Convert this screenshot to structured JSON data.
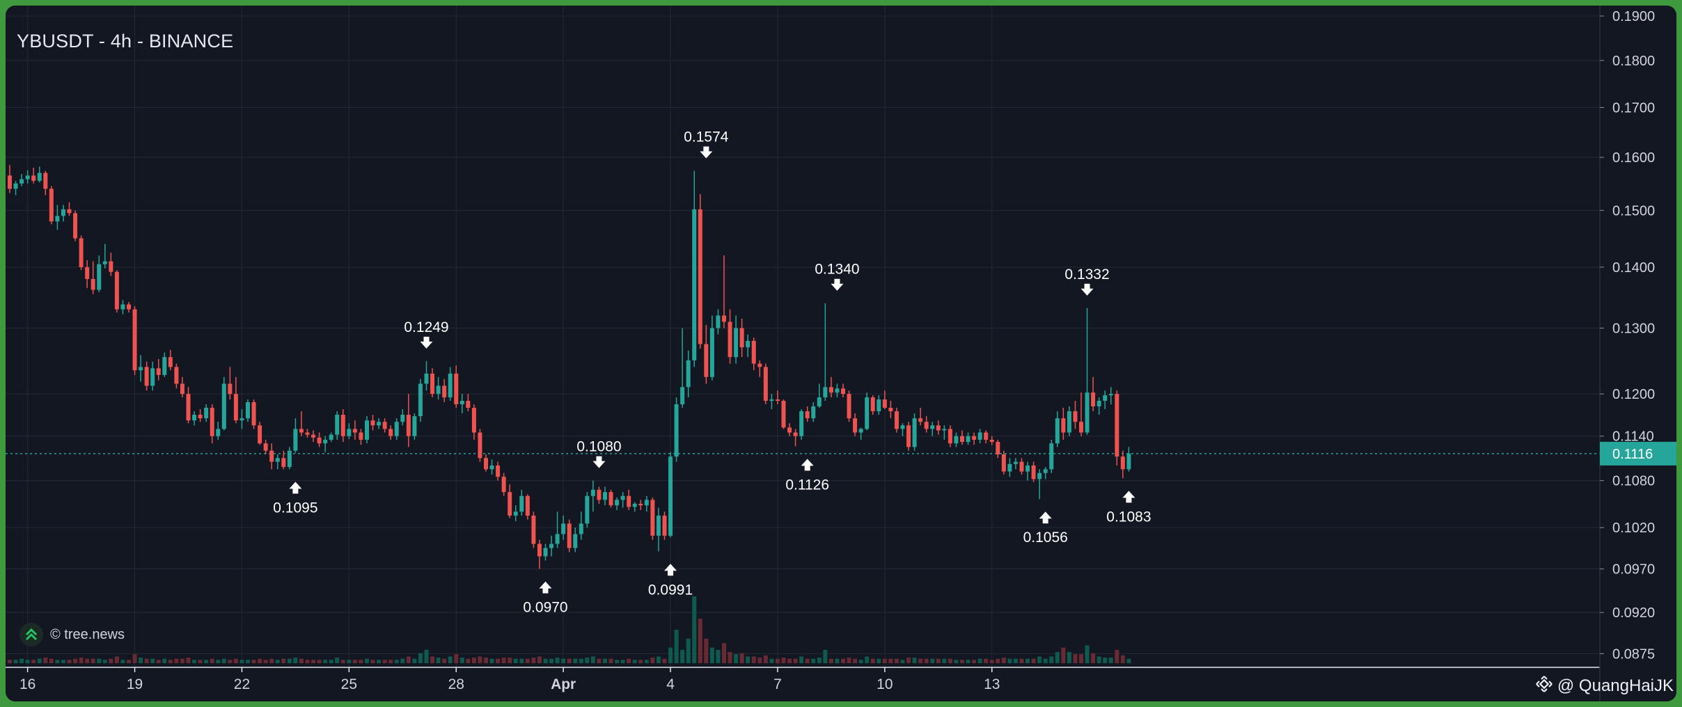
{
  "title": "YBUSDT - 4h - BINANCE",
  "source_badge": "© tree.news",
  "watermark": "@ QuangHaiJK",
  "colors": {
    "background": "#131722",
    "grid": "#232733",
    "up": "#26a69a",
    "down": "#ef5350",
    "up_volume": "#0f5a4f",
    "down_volume": "#6a2a34",
    "current_price_line": "#26a69a",
    "label_text": "#ffffff",
    "axis_text": "#d1d4dc",
    "frame": "#3f9a3f"
  },
  "icons": {
    "high_marker": "arrow-down-icon",
    "low_marker": "arrow-up-icon",
    "badge": "tree-news-logo-icon",
    "watermark": "binance-logo-icon"
  },
  "chart_data": {
    "type": "candlestick",
    "symbol": "YBUSDT",
    "interval": "4h",
    "exchange": "BINANCE",
    "y_scale": "log",
    "ylim": [
      0.0865,
      0.19
    ],
    "grid": true,
    "y_ticks": [
      "0.1900",
      "0.1800",
      "0.1700",
      "0.1600",
      "0.1500",
      "0.1400",
      "0.1300",
      "0.1200",
      "0.1140",
      "0.1080",
      "0.1020",
      "0.0970",
      "0.0920",
      "0.0875"
    ],
    "x_ticks": [
      {
        "label": "16",
        "bold": false
      },
      {
        "label": "19",
        "bold": false
      },
      {
        "label": "22",
        "bold": false
      },
      {
        "label": "25",
        "bold": false
      },
      {
        "label": "28",
        "bold": false
      },
      {
        "label": "Apr",
        "bold": true
      },
      {
        "label": "4",
        "bold": false
      },
      {
        "label": "7",
        "bold": false
      },
      {
        "label": "10",
        "bold": false
      },
      {
        "label": "13",
        "bold": false
      }
    ],
    "current_price": "0.1116",
    "annotations": [
      {
        "label": "0.1574",
        "type": "high",
        "price": 0.1574,
        "candle_index": 117
      },
      {
        "label": "0.1340",
        "type": "high",
        "price": 0.134,
        "candle_index": 139
      },
      {
        "label": "0.1332",
        "type": "high",
        "price": 0.1332,
        "candle_index": 181
      },
      {
        "label": "0.1249",
        "type": "high",
        "price": 0.1249,
        "candle_index": 70
      },
      {
        "label": "0.1080",
        "type": "high",
        "price": 0.108,
        "candle_index": 99
      },
      {
        "label": "0.1095",
        "type": "low",
        "price": 0.1095,
        "candle_index": 48
      },
      {
        "label": "0.0970",
        "type": "low",
        "price": 0.097,
        "candle_index": 90
      },
      {
        "label": "0.0991",
        "type": "low",
        "price": 0.0991,
        "candle_index": 111
      },
      {
        "label": "0.1126",
        "type": "low",
        "price": 0.1126,
        "candle_index": 134
      },
      {
        "label": "0.1056",
        "type": "low",
        "price": 0.1056,
        "candle_index": 174
      },
      {
        "label": "0.1083",
        "type": "low",
        "price": 0.1083,
        "candle_index": 188
      }
    ],
    "candles": [
      [
        0.1565,
        0.1585,
        0.1532,
        0.154
      ],
      [
        0.154,
        0.1555,
        0.1528,
        0.155
      ],
      [
        0.155,
        0.1568,
        0.1545,
        0.1558
      ],
      [
        0.1558,
        0.1575,
        0.155,
        0.1565
      ],
      [
        0.1565,
        0.158,
        0.155,
        0.1555
      ],
      [
        0.1555,
        0.1582,
        0.1552,
        0.157
      ],
      [
        0.157,
        0.1574,
        0.1528,
        0.154
      ],
      [
        0.154,
        0.1545,
        0.1475,
        0.148
      ],
      [
        0.148,
        0.151,
        0.1465,
        0.149
      ],
      [
        0.149,
        0.151,
        0.148,
        0.1502
      ],
      [
        0.1502,
        0.1515,
        0.149,
        0.1495
      ],
      [
        0.1495,
        0.15,
        0.1445,
        0.145
      ],
      [
        0.145,
        0.1455,
        0.1395,
        0.14
      ],
      [
        0.14,
        0.1412,
        0.1365,
        0.138
      ],
      [
        0.138,
        0.141,
        0.1355,
        0.1362
      ],
      [
        0.1362,
        0.142,
        0.1358,
        0.1405
      ],
      [
        0.1405,
        0.144,
        0.1398,
        0.141
      ],
      [
        0.141,
        0.1425,
        0.1385,
        0.1392
      ],
      [
        0.1392,
        0.1395,
        0.1325,
        0.133
      ],
      [
        0.133,
        0.1345,
        0.1322,
        0.1338
      ],
      [
        0.1338,
        0.1342,
        0.1325,
        0.133
      ],
      [
        0.133,
        0.1335,
        0.1228,
        0.1235
      ],
      [
        0.1235,
        0.1258,
        0.1218,
        0.124
      ],
      [
        0.124,
        0.1248,
        0.1205,
        0.1212
      ],
      [
        0.1212,
        0.1248,
        0.1205,
        0.1238
      ],
      [
        0.1238,
        0.1252,
        0.122,
        0.1228
      ],
      [
        0.1228,
        0.1262,
        0.1225,
        0.1255
      ],
      [
        0.1255,
        0.1266,
        0.1235,
        0.124
      ],
      [
        0.124,
        0.1245,
        0.1208,
        0.1215
      ],
      [
        0.1215,
        0.1225,
        0.1195,
        0.12
      ],
      [
        0.12,
        0.121,
        0.1158,
        0.1162
      ],
      [
        0.1162,
        0.1175,
        0.1155,
        0.117
      ],
      [
        0.117,
        0.1178,
        0.116,
        0.1165
      ],
      [
        0.1165,
        0.1185,
        0.116,
        0.118
      ],
      [
        0.118,
        0.1185,
        0.113,
        0.114
      ],
      [
        0.114,
        0.116,
        0.1135,
        0.115
      ],
      [
        0.115,
        0.1225,
        0.1148,
        0.1215
      ],
      [
        0.1215,
        0.124,
        0.1192,
        0.12
      ],
      [
        0.12,
        0.1225,
        0.1158,
        0.1162
      ],
      [
        0.1162,
        0.1178,
        0.115,
        0.1165
      ],
      [
        0.1165,
        0.1192,
        0.116,
        0.1188
      ],
      [
        0.1188,
        0.1192,
        0.115,
        0.1155
      ],
      [
        0.1155,
        0.116,
        0.1128,
        0.113
      ],
      [
        0.113,
        0.1135,
        0.1115,
        0.112
      ],
      [
        0.112,
        0.113,
        0.1095,
        0.1105
      ],
      [
        0.1105,
        0.1115,
        0.1095,
        0.111
      ],
      [
        0.111,
        0.112,
        0.1095,
        0.1098
      ],
      [
        0.1098,
        0.1125,
        0.1095,
        0.112
      ],
      [
        0.112,
        0.1165,
        0.1117,
        0.115
      ],
      [
        0.115,
        0.1175,
        0.114,
        0.1145
      ],
      [
        0.1145,
        0.115,
        0.1138,
        0.1142
      ],
      [
        0.1142,
        0.1148,
        0.1132,
        0.1138
      ],
      [
        0.1138,
        0.1145,
        0.1125,
        0.113
      ],
      [
        0.113,
        0.114,
        0.1118,
        0.1135
      ],
      [
        0.1135,
        0.1145,
        0.1132,
        0.1142
      ],
      [
        0.1142,
        0.1175,
        0.1135,
        0.117
      ],
      [
        0.117,
        0.1178,
        0.1132,
        0.114
      ],
      [
        0.114,
        0.1158,
        0.1136,
        0.115
      ],
      [
        0.115,
        0.1162,
        0.1135,
        0.1145
      ],
      [
        0.1145,
        0.115,
        0.1128,
        0.1135
      ],
      [
        0.1135,
        0.1168,
        0.113,
        0.1162
      ],
      [
        0.1162,
        0.117,
        0.1148,
        0.1155
      ],
      [
        0.1155,
        0.1165,
        0.115,
        0.116
      ],
      [
        0.116,
        0.1165,
        0.1145,
        0.115
      ],
      [
        0.115,
        0.1155,
        0.1135,
        0.114
      ],
      [
        0.114,
        0.1165,
        0.1135,
        0.116
      ],
      [
        0.116,
        0.1178,
        0.1155,
        0.117
      ],
      [
        0.117,
        0.12,
        0.1125,
        0.114
      ],
      [
        0.114,
        0.1172,
        0.1135,
        0.1168
      ],
      [
        0.1168,
        0.1222,
        0.116,
        0.1215
      ],
      [
        0.1215,
        0.1249,
        0.1205,
        0.123
      ],
      [
        0.123,
        0.1238,
        0.1195,
        0.12
      ],
      [
        0.12,
        0.1225,
        0.1192,
        0.1212
      ],
      [
        0.1212,
        0.1222,
        0.1188,
        0.1195
      ],
      [
        0.1195,
        0.124,
        0.119,
        0.123
      ],
      [
        0.123,
        0.1242,
        0.118,
        0.1185
      ],
      [
        0.1185,
        0.12,
        0.1172,
        0.119
      ],
      [
        0.119,
        0.12,
        0.1175,
        0.118
      ],
      [
        0.118,
        0.1185,
        0.1135,
        0.1145
      ],
      [
        0.1145,
        0.115,
        0.1105,
        0.111
      ],
      [
        0.111,
        0.1115,
        0.1092,
        0.1095
      ],
      [
        0.1095,
        0.1108,
        0.1088,
        0.11
      ],
      [
        0.11,
        0.1105,
        0.108,
        0.1085
      ],
      [
        0.1085,
        0.109,
        0.106,
        0.1065
      ],
      [
        0.1065,
        0.1075,
        0.1032,
        0.1035
      ],
      [
        0.1035,
        0.1048,
        0.1028,
        0.104
      ],
      [
        0.104,
        0.1068,
        0.1035,
        0.106
      ],
      [
        0.106,
        0.1062,
        0.103,
        0.1035
      ],
      [
        0.1035,
        0.104,
        0.0995,
        0.1
      ],
      [
        0.1,
        0.1005,
        0.097,
        0.0985
      ],
      [
        0.0985,
        0.1,
        0.098,
        0.0995
      ],
      [
        0.0995,
        0.101,
        0.0985,
        0.1
      ],
      [
        0.1,
        0.104,
        0.0995,
        0.1012
      ],
      [
        0.1012,
        0.1035,
        0.1005,
        0.1025
      ],
      [
        0.1025,
        0.103,
        0.099,
        0.0995
      ],
      [
        0.0995,
        0.102,
        0.099,
        0.1012
      ],
      [
        0.1012,
        0.104,
        0.1005,
        0.1025
      ],
      [
        0.1025,
        0.1065,
        0.102,
        0.106
      ],
      [
        0.106,
        0.108,
        0.104,
        0.1068
      ],
      [
        0.1068,
        0.1072,
        0.105,
        0.1055
      ],
      [
        0.1055,
        0.1072,
        0.1048,
        0.1065
      ],
      [
        0.1065,
        0.1068,
        0.1045,
        0.1048
      ],
      [
        0.1048,
        0.1058,
        0.1042,
        0.1055
      ],
      [
        0.1055,
        0.1065,
        0.1045,
        0.106
      ],
      [
        0.106,
        0.1068,
        0.1042,
        0.1046
      ],
      [
        0.1046,
        0.1052,
        0.104,
        0.105
      ],
      [
        0.105,
        0.1055,
        0.1042,
        0.1048
      ],
      [
        0.1048,
        0.106,
        0.104,
        0.1055
      ],
      [
        0.1055,
        0.1058,
        0.1005,
        0.101
      ],
      [
        0.101,
        0.1045,
        0.0991,
        0.1035
      ],
      [
        0.1035,
        0.104,
        0.1005,
        0.101
      ],
      [
        0.101,
        0.1118,
        0.1008,
        0.1112
      ],
      [
        0.1112,
        0.1195,
        0.1105,
        0.1185
      ],
      [
        0.1185,
        0.13,
        0.118,
        0.121
      ],
      [
        0.121,
        0.1265,
        0.1195,
        0.125
      ],
      [
        0.125,
        0.1574,
        0.124,
        0.1502
      ],
      [
        0.1502,
        0.153,
        0.1268,
        0.1275
      ],
      [
        0.1275,
        0.1305,
        0.1215,
        0.1225
      ],
      [
        0.1225,
        0.132,
        0.122,
        0.13
      ],
      [
        0.13,
        0.133,
        0.129,
        0.132
      ],
      [
        0.132,
        0.142,
        0.13,
        0.131
      ],
      [
        0.131,
        0.133,
        0.1245,
        0.1255
      ],
      [
        0.1255,
        0.132,
        0.1245,
        0.13
      ],
      [
        0.13,
        0.1315,
        0.1255,
        0.127
      ],
      [
        0.127,
        0.129,
        0.1255,
        0.128
      ],
      [
        0.128,
        0.1285,
        0.1235,
        0.1245
      ],
      [
        0.1245,
        0.125,
        0.1225,
        0.124
      ],
      [
        0.124,
        0.1245,
        0.1185,
        0.119
      ],
      [
        0.119,
        0.12,
        0.1178,
        0.1192
      ],
      [
        0.1192,
        0.1205,
        0.1185,
        0.119
      ],
      [
        0.119,
        0.1192,
        0.115,
        0.1152
      ],
      [
        0.1152,
        0.1158,
        0.114,
        0.1145
      ],
      [
        0.1145,
        0.115,
        0.1126,
        0.114
      ],
      [
        0.114,
        0.1178,
        0.1135,
        0.1175
      ],
      [
        0.1175,
        0.1182,
        0.116,
        0.1165
      ],
      [
        0.1165,
        0.1188,
        0.116,
        0.1182
      ],
      [
        0.1182,
        0.1215,
        0.118,
        0.1195
      ],
      [
        0.1195,
        0.134,
        0.119,
        0.121
      ],
      [
        0.121,
        0.1225,
        0.1195,
        0.1202
      ],
      [
        0.1202,
        0.1215,
        0.1195,
        0.1208
      ],
      [
        0.1208,
        0.1215,
        0.1195,
        0.12
      ],
      [
        0.12,
        0.1205,
        0.116,
        0.1165
      ],
      [
        0.1165,
        0.1172,
        0.114,
        0.1145
      ],
      [
        0.1145,
        0.1152,
        0.1135,
        0.115
      ],
      [
        0.115,
        0.1202,
        0.1148,
        0.1195
      ],
      [
        0.1195,
        0.1198,
        0.117,
        0.1175
      ],
      [
        0.1175,
        0.1198,
        0.117,
        0.1192
      ],
      [
        0.1192,
        0.1205,
        0.1178,
        0.118
      ],
      [
        0.118,
        0.119,
        0.1165,
        0.1175
      ],
      [
        0.1175,
        0.118,
        0.1145,
        0.115
      ],
      [
        0.115,
        0.1158,
        0.114,
        0.1155
      ],
      [
        0.1155,
        0.116,
        0.112,
        0.1125
      ],
      [
        0.1125,
        0.1172,
        0.112,
        0.1165
      ],
      [
        0.1165,
        0.118,
        0.1155,
        0.116
      ],
      [
        0.116,
        0.1168,
        0.1145,
        0.115
      ],
      [
        0.115,
        0.116,
        0.114,
        0.1155
      ],
      [
        0.1155,
        0.1162,
        0.1142,
        0.1148
      ],
      [
        0.1148,
        0.1155,
        0.1135,
        0.115
      ],
      [
        0.115,
        0.1155,
        0.1125,
        0.113
      ],
      [
        0.113,
        0.1145,
        0.1125,
        0.114
      ],
      [
        0.114,
        0.1148,
        0.1128,
        0.1132
      ],
      [
        0.1132,
        0.1145,
        0.1128,
        0.114
      ],
      [
        0.114,
        0.1145,
        0.1128,
        0.1135
      ],
      [
        0.1135,
        0.115,
        0.113,
        0.1145
      ],
      [
        0.1145,
        0.1148,
        0.113,
        0.1135
      ],
      [
        0.1135,
        0.114,
        0.1128,
        0.1132
      ],
      [
        0.1132,
        0.1135,
        0.111,
        0.1115
      ],
      [
        0.1115,
        0.112,
        0.1088,
        0.1092
      ],
      [
        0.1092,
        0.111,
        0.1085,
        0.1102
      ],
      [
        0.1102,
        0.111,
        0.1095,
        0.1105
      ],
      [
        0.1105,
        0.111,
        0.1088,
        0.1092
      ],
      [
        0.1092,
        0.1105,
        0.108,
        0.11
      ],
      [
        0.11,
        0.1105,
        0.1078,
        0.1082
      ],
      [
        0.1082,
        0.1095,
        0.1056,
        0.109
      ],
      [
        0.109,
        0.1098,
        0.1082,
        0.1095
      ],
      [
        0.1095,
        0.1135,
        0.109,
        0.113
      ],
      [
        0.113,
        0.1175,
        0.1125,
        0.1165
      ],
      [
        0.1165,
        0.118,
        0.1135,
        0.1145
      ],
      [
        0.1145,
        0.1182,
        0.114,
        0.1175
      ],
      [
        0.1175,
        0.119,
        0.115,
        0.116
      ],
      [
        0.116,
        0.1202,
        0.114,
        0.1145
      ],
      [
        0.1145,
        0.1332,
        0.1142,
        0.1202
      ],
      [
        0.1202,
        0.1225,
        0.1175,
        0.1182
      ],
      [
        0.1182,
        0.1195,
        0.117,
        0.119
      ],
      [
        0.119,
        0.1205,
        0.1178,
        0.1198
      ],
      [
        0.1198,
        0.121,
        0.1185,
        0.12
      ],
      [
        0.12,
        0.1205,
        0.11,
        0.1112
      ],
      [
        0.1112,
        0.112,
        0.1083,
        0.1095
      ],
      [
        0.1095,
        0.1125,
        0.1092,
        0.1116
      ]
    ],
    "volumes": [
      3,
      3,
      4,
      3,
      3,
      4,
      5,
      4,
      3,
      3,
      3,
      4,
      5,
      4,
      4,
      4,
      3,
      4,
      6,
      3,
      3,
      8,
      5,
      4,
      4,
      3,
      4,
      3,
      4,
      4,
      5,
      3,
      3,
      3,
      4,
      3,
      4,
      3,
      4,
      3,
      3,
      3,
      4,
      3,
      4,
      3,
      4,
      4,
      5,
      4,
      3,
      3,
      3,
      3,
      3,
      5,
      3,
      3,
      3,
      3,
      4,
      3,
      3,
      3,
      3,
      3,
      4,
      6,
      4,
      9,
      12,
      6,
      5,
      4,
      6,
      8,
      5,
      4,
      5,
      6,
      5,
      4,
      4,
      5,
      5,
      4,
      4,
      4,
      5,
      6,
      4,
      4,
      5,
      4,
      4,
      4,
      4,
      5,
      6,
      4,
      4,
      4,
      3,
      3,
      4,
      3,
      3,
      3,
      5,
      6,
      4,
      14,
      30,
      12,
      22,
      60,
      40,
      22,
      14,
      12,
      18,
      10,
      8,
      9,
      6,
      6,
      5,
      7,
      4,
      4,
      5,
      4,
      4,
      6,
      4,
      4,
      5,
      12,
      4,
      4,
      4,
      5,
      4,
      3,
      6,
      4,
      4,
      4,
      4,
      4,
      3,
      5,
      5,
      4,
      4,
      4,
      4,
      4,
      4,
      3,
      3,
      3,
      3,
      4,
      4,
      3,
      4,
      5,
      4,
      4,
      4,
      4,
      4,
      6,
      4,
      6,
      10,
      14,
      10,
      8,
      8,
      16,
      9,
      6,
      5,
      5,
      12,
      7,
      4
    ]
  }
}
